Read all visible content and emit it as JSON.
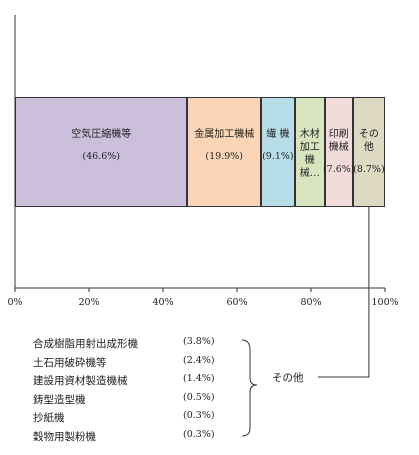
{
  "chart_data": {
    "type": "stacked_bar_100",
    "categories": [
      "空気圧縮機等",
      "金属加工機械",
      "繊 機",
      "木材加工機械…",
      "印刷機械",
      "その他"
    ],
    "values": [
      46.6,
      19.9,
      9.1,
      8.1,
      7.6,
      8.7
    ],
    "value_labels": [
      "(46.6%)",
      "(19.9%)",
      "(9.1%)",
      null,
      "(7.6%)",
      "(8.7%)"
    ],
    "colors": [
      "#cbbfdc",
      "#fbd5b5",
      "#b7dde8",
      "#d7e4bd",
      "#f2dcdb",
      "#ddd9c3"
    ],
    "xlim": [
      0,
      100
    ],
    "xticks": [
      {
        "value": 0,
        "label": "0%"
      },
      {
        "value": 20,
        "label": "20%"
      },
      {
        "value": 40,
        "label": "40%"
      },
      {
        "value": 60,
        "label": "60%"
      },
      {
        "value": 80,
        "label": "80%"
      },
      {
        "value": 100,
        "label": "100%"
      }
    ],
    "other_breakdown": {
      "label": "その他",
      "categories": [
        "合成樹脂用射出成形機",
        "土石用破砕機等",
        "建設用資材製造機械",
        "鋳型造型機",
        "抄紙機",
        "穀物用製粉機"
      ],
      "values": [
        3.8,
        2.4,
        1.4,
        0.5,
        0.3,
        0.3
      ],
      "value_labels": [
        "(3.8%)",
        "(2.4%)",
        "(1.4%)",
        "(0.5%)",
        "(0.3%)",
        "(0.3%)"
      ]
    }
  }
}
